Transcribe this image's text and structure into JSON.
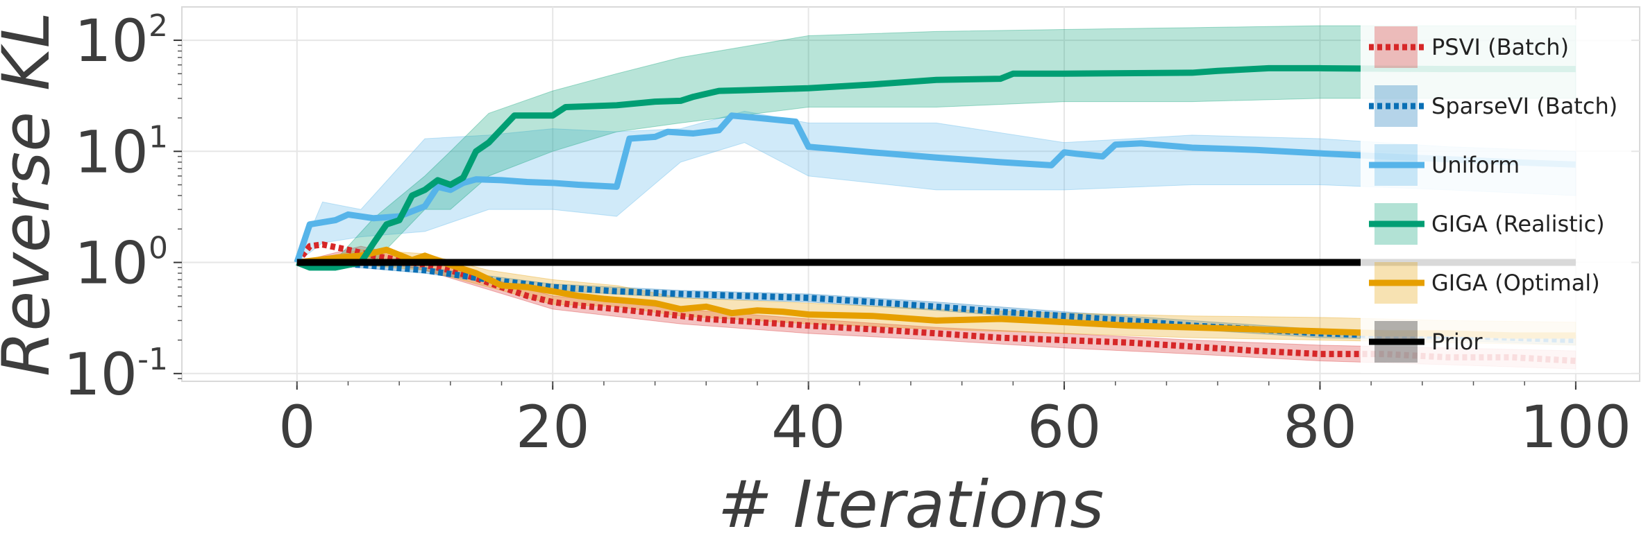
{
  "chart_data": {
    "type": "line",
    "xlabel": "# Iterations",
    "ylabel": "Reverse KL",
    "xlim": [
      -9,
      105
    ],
    "ylim_log10": [
      -1.07,
      2.3
    ],
    "yscale": "log",
    "grid": true,
    "legend_position": "right",
    "x_ticks": [
      0,
      20,
      40,
      60,
      80,
      100
    ],
    "y_ticks": [
      {
        "value": 0.1,
        "base": "10",
        "exp": "-1"
      },
      {
        "value": 1,
        "base": "10",
        "exp": "0"
      },
      {
        "value": 10,
        "base": "10",
        "exp": "1"
      },
      {
        "value": 100,
        "base": "10",
        "exp": "2"
      }
    ],
    "series": [
      {
        "name": "PSVI (Batch)",
        "color": "#d62728",
        "style": "dotted",
        "points": [
          [
            0,
            1.0
          ],
          [
            1,
            1.4
          ],
          [
            2,
            1.45
          ],
          [
            4,
            1.3
          ],
          [
            6,
            1.15
          ],
          [
            8,
            1.05
          ],
          [
            10,
            0.95
          ],
          [
            12,
            0.85
          ],
          [
            14,
            0.72
          ],
          [
            16,
            0.6
          ],
          [
            18,
            0.5
          ],
          [
            20,
            0.44
          ],
          [
            22,
            0.41
          ],
          [
            24,
            0.39
          ],
          [
            26,
            0.37
          ],
          [
            28,
            0.35
          ],
          [
            30,
            0.33
          ],
          [
            32,
            0.31
          ],
          [
            34,
            0.3
          ],
          [
            36,
            0.29
          ],
          [
            38,
            0.28
          ],
          [
            40,
            0.27
          ],
          [
            45,
            0.25
          ],
          [
            50,
            0.23
          ],
          [
            55,
            0.21
          ],
          [
            60,
            0.2
          ],
          [
            65,
            0.19
          ],
          [
            70,
            0.175
          ],
          [
            75,
            0.16
          ],
          [
            80,
            0.15
          ],
          [
            85,
            0.15
          ],
          [
            90,
            0.14
          ],
          [
            95,
            0.14
          ],
          [
            100,
            0.13
          ]
        ],
        "band": [
          [
            0,
            1.0,
            1.0
          ],
          [
            5,
            1.1,
            1.4
          ],
          [
            10,
            0.85,
            1.05
          ],
          [
            20,
            0.38,
            0.5
          ],
          [
            30,
            0.28,
            0.38
          ],
          [
            40,
            0.23,
            0.31
          ],
          [
            50,
            0.2,
            0.26
          ],
          [
            60,
            0.17,
            0.23
          ],
          [
            70,
            0.15,
            0.2
          ],
          [
            80,
            0.13,
            0.18
          ],
          [
            90,
            0.12,
            0.17
          ],
          [
            100,
            0.11,
            0.16
          ]
        ]
      },
      {
        "name": "SparseVI (Batch)",
        "color": "#0a6fb5",
        "style": "dotted",
        "points": [
          [
            0,
            1.0
          ],
          [
            5,
            0.95
          ],
          [
            10,
            0.85
          ],
          [
            15,
            0.7
          ],
          [
            20,
            0.6
          ],
          [
            25,
            0.55
          ],
          [
            30,
            0.52
          ],
          [
            35,
            0.5
          ],
          [
            40,
            0.48
          ],
          [
            45,
            0.44
          ],
          [
            50,
            0.4
          ],
          [
            55,
            0.36
          ],
          [
            60,
            0.33
          ],
          [
            65,
            0.3
          ],
          [
            70,
            0.27
          ],
          [
            75,
            0.25
          ],
          [
            80,
            0.23
          ],
          [
            85,
            0.22
          ],
          [
            90,
            0.22
          ],
          [
            95,
            0.21
          ],
          [
            100,
            0.2
          ]
        ],
        "band": [
          [
            0,
            1.0,
            1.0
          ],
          [
            10,
            0.8,
            0.9
          ],
          [
            20,
            0.56,
            0.64
          ],
          [
            30,
            0.48,
            0.56
          ],
          [
            40,
            0.44,
            0.52
          ],
          [
            50,
            0.37,
            0.44
          ],
          [
            60,
            0.3,
            0.36
          ],
          [
            70,
            0.25,
            0.3
          ],
          [
            80,
            0.21,
            0.25
          ],
          [
            90,
            0.2,
            0.24
          ],
          [
            100,
            0.18,
            0.22
          ]
        ]
      },
      {
        "name": "Uniform",
        "color": "#56b4e9",
        "style": "solid",
        "points": [
          [
            0,
            1.0
          ],
          [
            1,
            2.2
          ],
          [
            3,
            2.4
          ],
          [
            4,
            2.7
          ],
          [
            6,
            2.5
          ],
          [
            8,
            2.6
          ],
          [
            10,
            3.2
          ],
          [
            11,
            4.8
          ],
          [
            12,
            4.5
          ],
          [
            13,
            5.2
          ],
          [
            14,
            5.6
          ],
          [
            16,
            5.5
          ],
          [
            18,
            5.3
          ],
          [
            20,
            5.2
          ],
          [
            22,
            5.0
          ],
          [
            25,
            4.8
          ],
          [
            26,
            13.0
          ],
          [
            28,
            13.5
          ],
          [
            29,
            15.0
          ],
          [
            31,
            14.5
          ],
          [
            33,
            15.5
          ],
          [
            34,
            21.0
          ],
          [
            36,
            20.0
          ],
          [
            38,
            19.0
          ],
          [
            39,
            18.5
          ],
          [
            40,
            11.0
          ],
          [
            45,
            9.8
          ],
          [
            50,
            8.8
          ],
          [
            55,
            8.0
          ],
          [
            59,
            7.5
          ],
          [
            60,
            9.8
          ],
          [
            61,
            9.5
          ],
          [
            63,
            9.0
          ],
          [
            64,
            11.5
          ],
          [
            66,
            11.8
          ],
          [
            70,
            10.8
          ],
          [
            75,
            10.3
          ],
          [
            80,
            9.6
          ],
          [
            85,
            9.0
          ],
          [
            90,
            8.5
          ],
          [
            95,
            8.0
          ],
          [
            100,
            7.6
          ]
        ],
        "band": [
          [
            0,
            1.0,
            1.0
          ],
          [
            2,
            1.5,
            3.5
          ],
          [
            5,
            1.7,
            3.0
          ],
          [
            10,
            1.9,
            13.0
          ],
          [
            15,
            3.0,
            14.0
          ],
          [
            20,
            3.0,
            16.0
          ],
          [
            25,
            2.6,
            15.0
          ],
          [
            30,
            8.0,
            16.0
          ],
          [
            35,
            12.0,
            23.0
          ],
          [
            40,
            6.0,
            18.0
          ],
          [
            50,
            4.5,
            18.0
          ],
          [
            60,
            4.5,
            12.0
          ],
          [
            70,
            5.0,
            14.0
          ],
          [
            80,
            5.0,
            13.0
          ],
          [
            90,
            4.5,
            11.0
          ],
          [
            100,
            4.0,
            10.0
          ]
        ]
      },
      {
        "name": "GIGA (Realistic)",
        "color": "#009e73",
        "style": "solid",
        "points": [
          [
            0,
            1.0
          ],
          [
            1,
            0.9
          ],
          [
            3,
            0.9
          ],
          [
            5,
            1.0
          ],
          [
            6,
            1.5
          ],
          [
            7,
            2.2
          ],
          [
            8,
            2.4
          ],
          [
            9,
            4.0
          ],
          [
            10,
            4.5
          ],
          [
            11,
            5.5
          ],
          [
            12,
            5.0
          ],
          [
            13,
            5.8
          ],
          [
            14,
            10.0
          ],
          [
            15,
            12.0
          ],
          [
            17,
            21.0
          ],
          [
            20,
            21.0
          ],
          [
            21,
            25.0
          ],
          [
            25,
            26.0
          ],
          [
            28,
            28.0
          ],
          [
            30,
            28.5
          ],
          [
            31,
            31.0
          ],
          [
            33,
            35.0
          ],
          [
            35,
            35.5
          ],
          [
            40,
            37.0
          ],
          [
            45,
            40.0
          ],
          [
            50,
            44.0
          ],
          [
            55,
            45.0
          ],
          [
            56,
            50.0
          ],
          [
            60,
            50.0
          ],
          [
            70,
            51.0
          ],
          [
            72,
            53.0
          ],
          [
            76,
            56.0
          ],
          [
            80,
            56.0
          ],
          [
            90,
            55.0
          ],
          [
            100,
            55.0
          ]
        ],
        "band": [
          [
            0,
            1.0,
            1.0
          ],
          [
            3,
            0.85,
            1.05
          ],
          [
            6,
            1.0,
            2.5
          ],
          [
            10,
            3.0,
            6.0
          ],
          [
            12,
            3.0,
            10.0
          ],
          [
            15,
            6.0,
            22.0
          ],
          [
            20,
            10.0,
            35.0
          ],
          [
            25,
            15.0,
            50.0
          ],
          [
            30,
            18.0,
            70.0
          ],
          [
            40,
            25.0,
            110.0
          ],
          [
            50,
            25.0,
            120.0
          ],
          [
            60,
            28.0,
            125.0
          ],
          [
            70,
            28.0,
            130.0
          ],
          [
            80,
            30.0,
            135.0
          ],
          [
            90,
            30.0,
            135.0
          ],
          [
            100,
            30.0,
            135.0
          ]
        ]
      },
      {
        "name": "GIGA (Optimal)",
        "color": "#e69f00",
        "style": "solid",
        "points": [
          [
            0,
            1.0
          ],
          [
            3,
            1.1
          ],
          [
            5,
            1.15
          ],
          [
            7,
            1.3
          ],
          [
            9,
            1.05
          ],
          [
            10,
            1.15
          ],
          [
            12,
            0.95
          ],
          [
            14,
            0.8
          ],
          [
            16,
            0.62
          ],
          [
            18,
            0.6
          ],
          [
            20,
            0.55
          ],
          [
            22,
            0.5
          ],
          [
            24,
            0.47
          ],
          [
            26,
            0.45
          ],
          [
            28,
            0.43
          ],
          [
            30,
            0.38
          ],
          [
            32,
            0.4
          ],
          [
            34,
            0.35
          ],
          [
            36,
            0.37
          ],
          [
            38,
            0.36
          ],
          [
            40,
            0.34
          ],
          [
            45,
            0.33
          ],
          [
            50,
            0.3
          ],
          [
            55,
            0.31
          ],
          [
            60,
            0.29
          ],
          [
            65,
            0.27
          ],
          [
            70,
            0.26
          ],
          [
            75,
            0.25
          ],
          [
            80,
            0.24
          ],
          [
            85,
            0.23
          ],
          [
            90,
            0.23
          ],
          [
            95,
            0.22
          ],
          [
            100,
            0.22
          ]
        ],
        "band": [
          [
            0,
            1.0,
            1.0
          ],
          [
            5,
            0.95,
            1.3
          ],
          [
            10,
            0.85,
            1.2
          ],
          [
            15,
            0.6,
            0.85
          ],
          [
            20,
            0.42,
            0.7
          ],
          [
            25,
            0.4,
            0.62
          ],
          [
            30,
            0.33,
            0.48
          ],
          [
            40,
            0.28,
            0.43
          ],
          [
            50,
            0.25,
            0.38
          ],
          [
            60,
            0.23,
            0.35
          ],
          [
            70,
            0.21,
            0.33
          ],
          [
            80,
            0.2,
            0.32
          ],
          [
            90,
            0.19,
            0.3
          ],
          [
            100,
            0.18,
            0.29
          ]
        ]
      },
      {
        "name": "Prior",
        "color": "#000000",
        "style": "solid",
        "points": [
          [
            0,
            1.0
          ],
          [
            100,
            1.0
          ]
        ],
        "band": [
          [
            0,
            0.98,
            1.02
          ],
          [
            100,
            0.98,
            1.02
          ]
        ]
      }
    ]
  }
}
